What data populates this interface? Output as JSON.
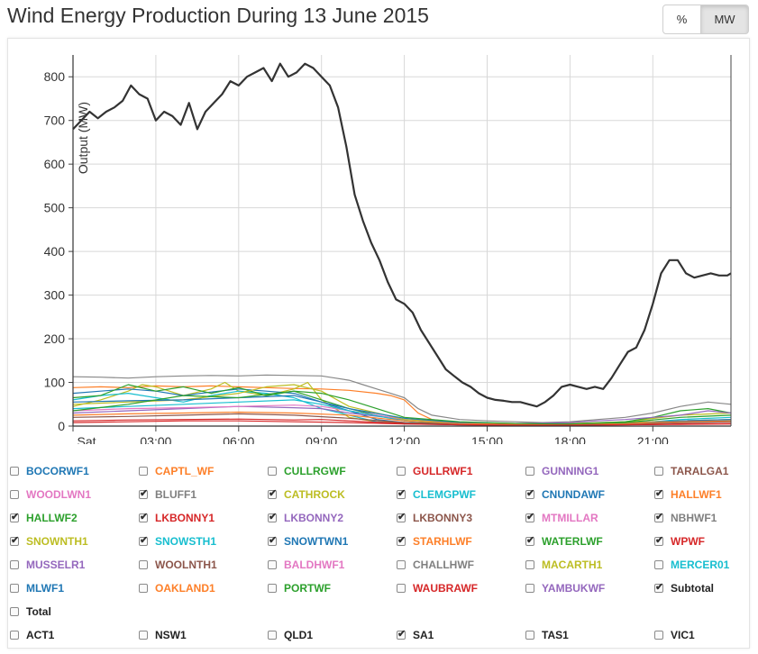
{
  "title": "Wind Energy Production During 13 June 2015",
  "toggle": {
    "percent_label": "%",
    "mw_label": "MW",
    "active": "MW"
  },
  "chart_data": {
    "type": "line",
    "ylabel": "Output (MW)",
    "ylim": [
      0,
      850
    ],
    "yticks": [
      0,
      100,
      200,
      300,
      400,
      500,
      600,
      700,
      800
    ],
    "xlim": [
      0,
      23.83
    ],
    "xticks": [
      {
        "x": 0,
        "label": "Sat"
      },
      {
        "x": 3,
        "label": "03:00"
      },
      {
        "x": 6,
        "label": "06:00"
      },
      {
        "x": 9,
        "label": "09:00"
      },
      {
        "x": 12,
        "label": "12:00"
      },
      {
        "x": 15,
        "label": "15:00"
      },
      {
        "x": 18,
        "label": "18:00"
      },
      {
        "x": 21,
        "label": "21:00"
      }
    ],
    "grid": true,
    "series": [
      {
        "name": "Subtotal",
        "color": "#333333",
        "width": 2.2,
        "x": [
          0,
          0.3,
          0.6,
          0.9,
          1.2,
          1.5,
          1.8,
          2.1,
          2.4,
          2.7,
          3.0,
          3.3,
          3.6,
          3.9,
          4.2,
          4.5,
          4.8,
          5.1,
          5.4,
          5.7,
          6.0,
          6.3,
          6.6,
          6.9,
          7.2,
          7.5,
          7.8,
          8.1,
          8.4,
          8.7,
          9.0,
          9.3,
          9.6,
          9.9,
          10.2,
          10.5,
          10.8,
          11.1,
          11.4,
          11.7,
          12.0,
          12.3,
          12.6,
          12.9,
          13.2,
          13.5,
          13.8,
          14.1,
          14.4,
          14.7,
          15.0,
          15.3,
          15.6,
          15.9,
          16.2,
          16.5,
          16.8,
          17.1,
          17.4,
          17.7,
          18.0,
          18.3,
          18.6,
          18.9,
          19.2,
          19.5,
          19.8,
          20.1,
          20.4,
          20.7,
          21.0,
          21.3,
          21.6,
          21.9,
          22.2,
          22.5,
          22.8,
          23.1,
          23.4,
          23.7,
          23.83
        ],
        "y": [
          680,
          700,
          720,
          705,
          720,
          730,
          745,
          780,
          760,
          750,
          700,
          720,
          710,
          690,
          740,
          680,
          720,
          740,
          760,
          790,
          780,
          800,
          810,
          820,
          790,
          830,
          800,
          810,
          830,
          820,
          800,
          780,
          730,
          640,
          530,
          470,
          420,
          380,
          330,
          290,
          280,
          260,
          220,
          190,
          160,
          130,
          115,
          100,
          90,
          75,
          65,
          60,
          58,
          55,
          55,
          50,
          45,
          55,
          70,
          90,
          95,
          90,
          85,
          90,
          85,
          110,
          140,
          170,
          180,
          220,
          280,
          350,
          380,
          380,
          350,
          340,
          345,
          350,
          345,
          345,
          350
        ]
      },
      {
        "name": "NBHWF1",
        "color": "#888888",
        "width": 1.2,
        "x": [
          0,
          1,
          2,
          3,
          4,
          5,
          6,
          7,
          8,
          9,
          9.5,
          10,
          10.5,
          11,
          11.5,
          12,
          12.5,
          13,
          14,
          15,
          16,
          17,
          18,
          19,
          20,
          21,
          22,
          23,
          23.83
        ],
        "y": [
          113,
          112,
          110,
          113,
          115,
          116,
          115,
          117,
          116,
          115,
          110,
          105,
          95,
          85,
          75,
          65,
          40,
          25,
          15,
          12,
          10,
          8,
          10,
          15,
          20,
          30,
          45,
          55,
          50
        ]
      },
      {
        "name": "HALLWF1",
        "color": "#fd7f28",
        "width": 1.2,
        "x": [
          0,
          1,
          2,
          3,
          4,
          5,
          6,
          7,
          8,
          9,
          10,
          11,
          11.5,
          12,
          12.5,
          13,
          14,
          15,
          16,
          18,
          20,
          22,
          23.83
        ],
        "y": [
          88,
          90,
          88,
          92,
          90,
          92,
          90,
          88,
          86,
          85,
          82,
          75,
          70,
          60,
          30,
          15,
          8,
          5,
          4,
          3,
          5,
          8,
          10
        ]
      },
      {
        "name": "CATHROCK",
        "color": "#bcbd22",
        "width": 1.2,
        "x": [
          0,
          1,
          2,
          2.5,
          3,
          4,
          5,
          5.5,
          6,
          7,
          8,
          8.5,
          9,
          9.5,
          10,
          11,
          12,
          13,
          14,
          16,
          18,
          20,
          22,
          23.83
        ],
        "y": [
          45,
          60,
          80,
          95,
          90,
          70,
          85,
          100,
          80,
          70,
          85,
          100,
          60,
          40,
          20,
          10,
          8,
          5,
          5,
          4,
          6,
          10,
          25,
          30
        ]
      },
      {
        "name": "CLEMGPWF",
        "color": "#17becf",
        "width": 1.2,
        "x": [
          0,
          1,
          2,
          3,
          4,
          5,
          6,
          7,
          8,
          9,
          10,
          11,
          12,
          14,
          16,
          18,
          20,
          22,
          23.83
        ],
        "y": [
          60,
          70,
          75,
          65,
          55,
          70,
          80,
          75,
          65,
          40,
          25,
          10,
          5,
          3,
          2,
          3,
          5,
          15,
          20
        ]
      },
      {
        "name": "CNUNDAWF",
        "color": "#1f77b4",
        "width": 1.2,
        "x": [
          0,
          1,
          2,
          3,
          4,
          5,
          6,
          7,
          8,
          9,
          10,
          11,
          12,
          14,
          16,
          18,
          20,
          22,
          23.83
        ],
        "y": [
          75,
          80,
          85,
          80,
          70,
          78,
          85,
          80,
          75,
          55,
          35,
          15,
          8,
          5,
          3,
          2,
          5,
          10,
          12
        ]
      },
      {
        "name": "HALLWF2",
        "color": "#2ca02c",
        "width": 1.2,
        "x": [
          0,
          1,
          2,
          3,
          4,
          5,
          6,
          7,
          8,
          9,
          10,
          11,
          12,
          13,
          14,
          16,
          18,
          20,
          21,
          22,
          23,
          23.83
        ],
        "y": [
          65,
          70,
          95,
          80,
          90,
          75,
          88,
          70,
          80,
          60,
          40,
          25,
          12,
          8,
          6,
          5,
          5,
          10,
          20,
          35,
          40,
          30
        ]
      },
      {
        "name": "LKBONNY1",
        "color": "#d62728",
        "width": 1.2,
        "x": [
          0,
          2,
          4,
          6,
          8,
          9,
          10,
          12,
          14,
          16,
          18,
          20,
          22,
          23.83
        ],
        "y": [
          12,
          14,
          15,
          16,
          14,
          15,
          12,
          6,
          3,
          2,
          2,
          3,
          5,
          6
        ]
      },
      {
        "name": "LKBONNY2",
        "color": "#9467bd",
        "width": 1.2,
        "x": [
          0,
          2,
          4,
          6,
          8,
          9,
          10,
          12,
          14,
          16,
          18,
          19,
          20,
          21,
          22,
          23,
          23.83
        ],
        "y": [
          30,
          35,
          40,
          45,
          42,
          40,
          30,
          15,
          8,
          6,
          8,
          12,
          15,
          20,
          25,
          35,
          30
        ]
      },
      {
        "name": "LKBONNY3",
        "color": "#8c564b",
        "width": 1.2,
        "x": [
          0,
          2,
          4,
          6,
          8,
          10,
          12,
          14,
          16,
          18,
          20,
          22,
          23.83
        ],
        "y": [
          20,
          22,
          25,
          28,
          25,
          18,
          8,
          4,
          3,
          3,
          5,
          8,
          10
        ]
      },
      {
        "name": "MTMILLAR",
        "color": "#e377c2",
        "width": 1.2,
        "x": [
          0,
          2,
          4,
          6,
          8,
          9,
          10,
          12,
          14,
          16,
          18,
          20,
          22,
          23.83
        ],
        "y": [
          35,
          40,
          42,
          45,
          48,
          45,
          35,
          15,
          8,
          5,
          5,
          8,
          12,
          15
        ]
      },
      {
        "name": "SNOWNTH1",
        "color": "#bcbd22",
        "width": 1.2,
        "x": [
          0,
          2,
          4,
          6,
          7,
          8,
          9,
          10,
          12,
          14,
          16,
          18,
          20,
          22,
          23.83
        ],
        "y": [
          50,
          55,
          60,
          75,
          90,
          95,
          80,
          45,
          15,
          8,
          5,
          5,
          8,
          12,
          15
        ]
      },
      {
        "name": "SNOWSTH1",
        "color": "#17becf",
        "width": 1.2,
        "x": [
          0,
          2,
          4,
          6,
          8,
          9,
          10,
          12,
          14,
          16,
          18,
          20,
          22,
          23.83
        ],
        "y": [
          40,
          45,
          50,
          55,
          60,
          50,
          35,
          12,
          6,
          4,
          4,
          6,
          10,
          12
        ]
      },
      {
        "name": "SNOWTWN1",
        "color": "#1f77b4",
        "width": 1.2,
        "x": [
          0,
          2,
          4,
          6,
          8,
          9,
          10,
          12,
          14,
          16,
          18,
          20,
          22,
          23.83
        ],
        "y": [
          55,
          58,
          60,
          65,
          70,
          55,
          40,
          18,
          8,
          5,
          4,
          6,
          12,
          15
        ]
      },
      {
        "name": "STARHLWF",
        "color": "#fd7f28",
        "width": 1.2,
        "x": [
          0,
          2,
          4,
          6,
          8,
          10,
          12,
          14,
          16,
          18,
          20,
          22,
          23.83
        ],
        "y": [
          25,
          28,
          30,
          32,
          30,
          25,
          12,
          6,
          4,
          4,
          6,
          10,
          12
        ]
      },
      {
        "name": "WATERLWF",
        "color": "#2ca02c",
        "width": 1.2,
        "x": [
          0,
          2,
          4,
          6,
          8,
          9,
          10,
          11,
          12,
          14,
          16,
          18,
          20,
          22,
          23.83
        ],
        "y": [
          35,
          50,
          70,
          65,
          80,
          75,
          60,
          40,
          20,
          10,
          6,
          5,
          8,
          20,
          25
        ]
      },
      {
        "name": "WPWF",
        "color": "#d62728",
        "width": 1.2,
        "x": [
          0,
          2,
          4,
          6,
          8,
          10,
          12,
          14,
          16,
          18,
          20,
          22,
          23.83
        ],
        "y": [
          8,
          10,
          12,
          12,
          10,
          8,
          5,
          3,
          2,
          2,
          3,
          4,
          5
        ]
      }
    ]
  },
  "checkboxes": [
    [
      {
        "label": "BOCORWF1",
        "checked": false,
        "color": "#1f77b4"
      },
      {
        "label": "CAPTL_WF",
        "checked": false,
        "color": "#fd7f28"
      },
      {
        "label": "CULLRGWF",
        "checked": false,
        "color": "#2ca02c"
      },
      {
        "label": "GULLRWF1",
        "checked": false,
        "color": "#d62728"
      },
      {
        "label": "GUNNING1",
        "checked": false,
        "color": "#9467bd"
      },
      {
        "label": "TARALGA1",
        "checked": false,
        "color": "#8c564b"
      }
    ],
    [
      {
        "label": "WOODLWN1",
        "checked": false,
        "color": "#e377c2"
      },
      {
        "label": "BLUFF1",
        "checked": true,
        "color": "#7f7f7f"
      },
      {
        "label": "CATHROCK",
        "checked": true,
        "color": "#bcbd22"
      },
      {
        "label": "CLEMGPWF",
        "checked": true,
        "color": "#17becf"
      },
      {
        "label": "CNUNDAWF",
        "checked": true,
        "color": "#1f77b4"
      },
      {
        "label": "HALLWF1",
        "checked": true,
        "color": "#fd7f28"
      }
    ],
    [
      {
        "label": "HALLWF2",
        "checked": true,
        "color": "#2ca02c"
      },
      {
        "label": "LKBONNY1",
        "checked": true,
        "color": "#d62728"
      },
      {
        "label": "LKBONNY2",
        "checked": true,
        "color": "#9467bd"
      },
      {
        "label": "LKBONNY3",
        "checked": true,
        "color": "#8c564b"
      },
      {
        "label": "MTMILLAR",
        "checked": true,
        "color": "#e377c2"
      },
      {
        "label": "NBHWF1",
        "checked": true,
        "color": "#7f7f7f"
      }
    ],
    [
      {
        "label": "SNOWNTH1",
        "checked": true,
        "color": "#bcbd22"
      },
      {
        "label": "SNOWSTH1",
        "checked": true,
        "color": "#17becf"
      },
      {
        "label": "SNOWTWN1",
        "checked": true,
        "color": "#1f77b4"
      },
      {
        "label": "STARHLWF",
        "checked": true,
        "color": "#fd7f28"
      },
      {
        "label": "WATERLWF",
        "checked": true,
        "color": "#2ca02c"
      },
      {
        "label": "WPWF",
        "checked": true,
        "color": "#d62728"
      }
    ],
    [
      {
        "label": "MUSSELR1",
        "checked": false,
        "color": "#9467bd"
      },
      {
        "label": "WOOLNTH1",
        "checked": false,
        "color": "#8c564b"
      },
      {
        "label": "BALDHWF1",
        "checked": false,
        "color": "#e377c2"
      },
      {
        "label": "CHALLHWF",
        "checked": false,
        "color": "#7f7f7f"
      },
      {
        "label": "MACARTH1",
        "checked": false,
        "color": "#bcbd22"
      },
      {
        "label": "MERCER01",
        "checked": false,
        "color": "#17becf"
      }
    ],
    [
      {
        "label": "MLWF1",
        "checked": false,
        "color": "#1f77b4"
      },
      {
        "label": "OAKLAND1",
        "checked": false,
        "color": "#fd7f28"
      },
      {
        "label": "PORTWF",
        "checked": false,
        "color": "#2ca02c"
      },
      {
        "label": "WAUBRAWF",
        "checked": false,
        "color": "#d62728"
      },
      {
        "label": "YAMBUKWF",
        "checked": false,
        "color": "#9467bd"
      },
      {
        "label": "Subtotal",
        "checked": true,
        "color": "#222222"
      }
    ],
    [
      {
        "label": "Total",
        "checked": false,
        "color": "#222222"
      }
    ],
    [
      {
        "label": "ACT1",
        "checked": false,
        "color": "#222222"
      },
      {
        "label": "NSW1",
        "checked": false,
        "color": "#222222"
      },
      {
        "label": "QLD1",
        "checked": false,
        "color": "#222222"
      },
      {
        "label": "SA1",
        "checked": true,
        "color": "#222222"
      },
      {
        "label": "TAS1",
        "checked": false,
        "color": "#222222"
      },
      {
        "label": "VIC1",
        "checked": false,
        "color": "#222222"
      }
    ]
  ]
}
